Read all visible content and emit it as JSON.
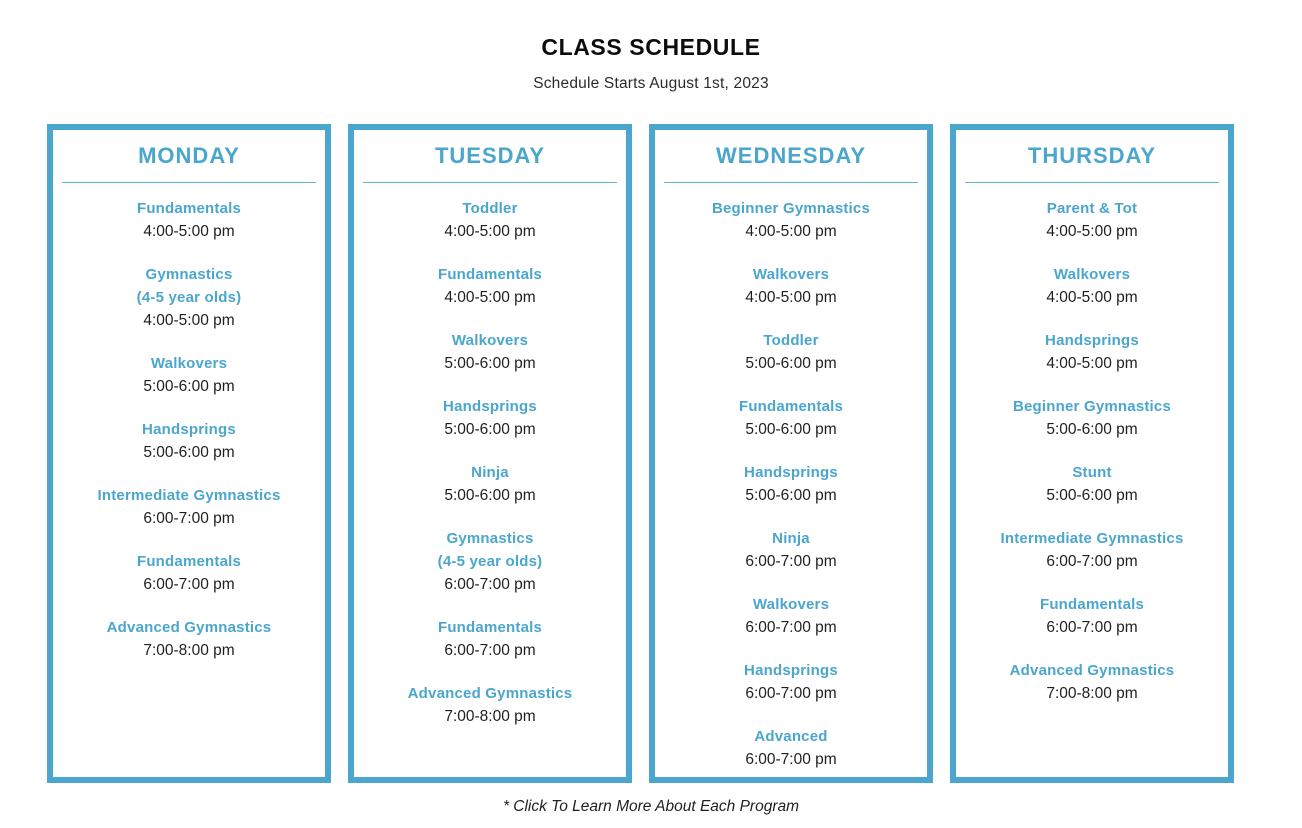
{
  "page": {
    "title": "CLASS SCHEDULE",
    "subtitle": "Schedule Starts August 1st, 2023",
    "footnote": "* Click To Learn More About Each Program"
  },
  "colors": {
    "accent": "#4BA6CD",
    "body_text": "#1B1B1B"
  },
  "days": [
    {
      "label": "MONDAY",
      "classes": [
        {
          "name_lines": [
            "Fundamentals"
          ],
          "time": "4:00-5:00 pm"
        },
        {
          "name_lines": [
            "Gymnastics",
            "(4-5 year olds)"
          ],
          "time": "4:00-5:00 pm"
        },
        {
          "name_lines": [
            "Walkovers"
          ],
          "time": "5:00-6:00 pm"
        },
        {
          "name_lines": [
            "Handsprings"
          ],
          "time": "5:00-6:00 pm"
        },
        {
          "name_lines": [
            "Intermediate Gymnastics"
          ],
          "time": "6:00-7:00 pm"
        },
        {
          "name_lines": [
            "Fundamentals"
          ],
          "time": "6:00-7:00 pm"
        },
        {
          "name_lines": [
            "Advanced Gymnastics"
          ],
          "time": "7:00-8:00 pm"
        }
      ]
    },
    {
      "label": "TUESDAY",
      "classes": [
        {
          "name_lines": [
            "Toddler"
          ],
          "time": "4:00-5:00 pm"
        },
        {
          "name_lines": [
            "Fundamentals"
          ],
          "time": "4:00-5:00 pm"
        },
        {
          "name_lines": [
            "Walkovers"
          ],
          "time": "5:00-6:00 pm"
        },
        {
          "name_lines": [
            "Handsprings"
          ],
          "time": "5:00-6:00 pm"
        },
        {
          "name_lines": [
            "Ninja"
          ],
          "time": "5:00-6:00 pm"
        },
        {
          "name_lines": [
            "Gymnastics",
            "(4-5 year olds)"
          ],
          "time": "6:00-7:00 pm"
        },
        {
          "name_lines": [
            "Fundamentals"
          ],
          "time": "6:00-7:00 pm"
        },
        {
          "name_lines": [
            "Advanced Gymnastics"
          ],
          "time": "7:00-8:00 pm"
        }
      ]
    },
    {
      "label": "WEDNESDAY",
      "classes": [
        {
          "name_lines": [
            "Beginner Gymnastics"
          ],
          "time": "4:00-5:00 pm"
        },
        {
          "name_lines": [
            "Walkovers"
          ],
          "time": "4:00-5:00 pm"
        },
        {
          "name_lines": [
            "Toddler"
          ],
          "time": "5:00-6:00 pm"
        },
        {
          "name_lines": [
            "Fundamentals"
          ],
          "time": "5:00-6:00 pm"
        },
        {
          "name_lines": [
            "Handsprings"
          ],
          "time": "5:00-6:00 pm"
        },
        {
          "name_lines": [
            "Ninja"
          ],
          "time": "6:00-7:00 pm"
        },
        {
          "name_lines": [
            "Walkovers"
          ],
          "time": "6:00-7:00 pm"
        },
        {
          "name_lines": [
            "Handsprings"
          ],
          "time": "6:00-7:00 pm"
        },
        {
          "name_lines": [
            "Advanced"
          ],
          "time": "6:00-7:00 pm"
        }
      ]
    },
    {
      "label": "THURSDAY",
      "classes": [
        {
          "name_lines": [
            "Parent & Tot"
          ],
          "time": "4:00-5:00 pm"
        },
        {
          "name_lines": [
            "Walkovers"
          ],
          "time": "4:00-5:00 pm"
        },
        {
          "name_lines": [
            "Handsprings"
          ],
          "time": "4:00-5:00 pm"
        },
        {
          "name_lines": [
            "Beginner Gymnastics"
          ],
          "time": "5:00-6:00 pm"
        },
        {
          "name_lines": [
            "Stunt"
          ],
          "time": "5:00-6:00 pm"
        },
        {
          "name_lines": [
            "Intermediate Gymnastics"
          ],
          "time": "6:00-7:00 pm"
        },
        {
          "name_lines": [
            "Fundamentals"
          ],
          "time": "6:00-7:00 pm"
        },
        {
          "name_lines": [
            "Advanced Gymnastics"
          ],
          "time": "7:00-8:00 pm"
        }
      ]
    }
  ]
}
